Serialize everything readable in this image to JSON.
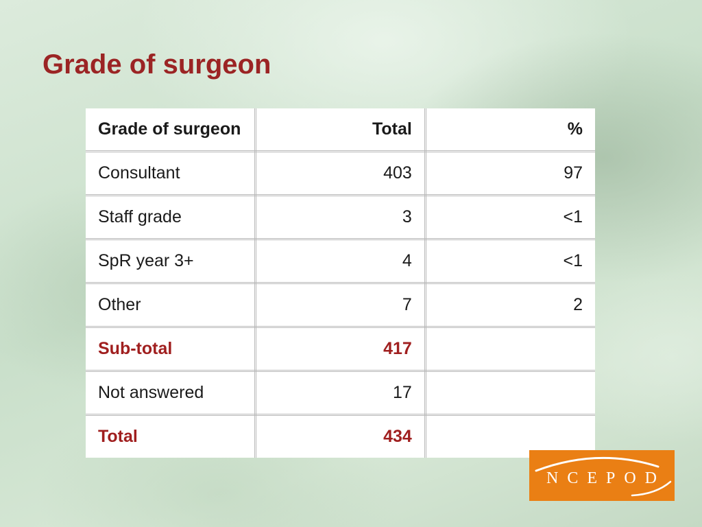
{
  "title": "Grade of surgeon",
  "table": {
    "headers": [
      "Grade of surgeon",
      "Total",
      "%"
    ],
    "rows": [
      {
        "label": "Consultant",
        "total": "403",
        "percent": "97"
      },
      {
        "label": "Staff grade",
        "total": "3",
        "percent": "<1"
      },
      {
        "label": "SpR year 3+",
        "total": "4",
        "percent": "<1"
      },
      {
        "label": "Other",
        "total": "7",
        "percent": "2"
      },
      {
        "label": "Sub-total",
        "total": "417",
        "percent": ""
      },
      {
        "label": "Not answered",
        "total": "17",
        "percent": ""
      },
      {
        "label": "Total",
        "total": "434",
        "percent": ""
      }
    ]
  },
  "logo": {
    "text": "NCEPOD",
    "background_color": "#ea7f14"
  },
  "colors": {
    "title": "#9b2424",
    "highlight_row": "#a01f1f"
  }
}
